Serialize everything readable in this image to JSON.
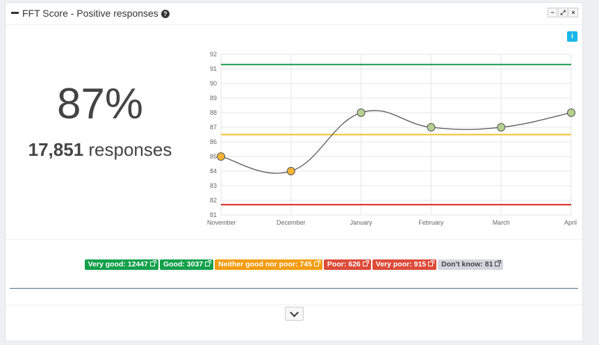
{
  "header": {
    "title": "FFT Score - Positive responses",
    "help_icon": "?",
    "buttons": [
      "−",
      "⤢",
      "×"
    ]
  },
  "info_icon": "i",
  "summary": {
    "score": "87%",
    "count": "17,851",
    "label": "responses"
  },
  "chart_data": {
    "type": "line",
    "categories": [
      "November",
      "December",
      "January",
      "February",
      "March",
      "April"
    ],
    "series": [
      {
        "values": [
          85,
          84,
          88,
          87,
          87,
          88
        ]
      }
    ],
    "reference_lines": [
      {
        "value": 91.3,
        "color": "#1a9a4a"
      },
      {
        "value": 86.5,
        "color": "#f2c12e"
      },
      {
        "value": 81.7,
        "color": "#d9221c"
      }
    ],
    "ylim": [
      81,
      92
    ],
    "yticks": [
      81,
      82,
      83,
      84,
      85,
      86,
      87,
      88,
      89,
      90,
      91,
      92
    ],
    "point_colors": {
      "below": "#f5b335",
      "above": "#b5cf8f"
    },
    "grid": true
  },
  "legend": [
    {
      "label": "Very good: 12447",
      "color": "#14a04b"
    },
    {
      "label": "Good: 3037",
      "color": "#14a04b"
    },
    {
      "label": "Neither good nor poor: 745",
      "color": "#f39c12"
    },
    {
      "label": "Poor: 626",
      "color": "#dd4b39"
    },
    {
      "label": "Very poor: 915",
      "color": "#dd4b39"
    },
    {
      "label": "Don't know: 81",
      "color": "#d2d6de",
      "text_color": "#444"
    }
  ]
}
